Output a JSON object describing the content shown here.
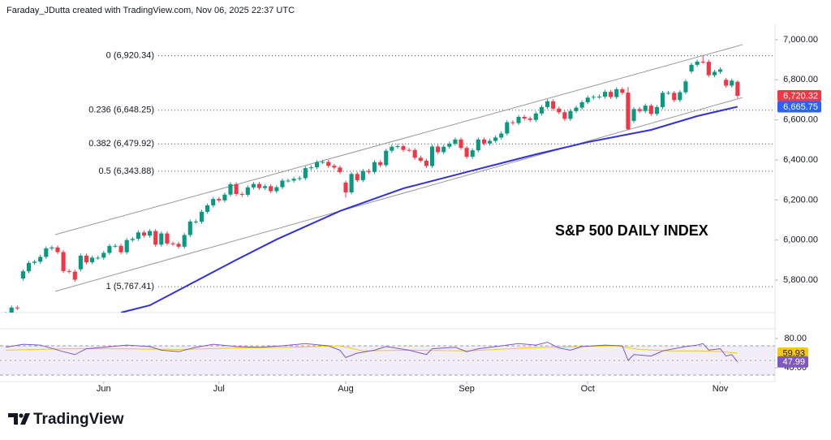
{
  "chart_data": {
    "type": "candlestick",
    "header": "Faraday_JDutta created with TradingView.com, Nov 06, 2025 22:37 UTC",
    "title": "S&P 500 DAILY INDEX",
    "brand": "TradingView",
    "xlim": [
      -1,
      133.5
    ],
    "xticks": [
      {
        "value": 17,
        "label": "Jun"
      },
      {
        "value": 37,
        "label": "Jul"
      },
      {
        "value": 59,
        "label": "Aug"
      },
      {
        "value": 80,
        "label": "Sep"
      },
      {
        "value": 101,
        "label": "Oct"
      },
      {
        "value": 124,
        "label": "Nov"
      }
    ],
    "ylim": [
      5638,
      7077
    ],
    "yticks": [
      {
        "value": 5800,
        "label": "5,800.00"
      },
      {
        "value": 6000,
        "label": "6,000.00"
      },
      {
        "value": 6200,
        "label": "6,200.00"
      },
      {
        "value": 6400,
        "label": "6,400.00"
      },
      {
        "value": 6600,
        "label": "6,600.00"
      },
      {
        "value": 6800,
        "label": "6,800.00"
      },
      {
        "value": 7000,
        "label": "7,000.00"
      }
    ],
    "grid": false,
    "candles": {
      "up_color": "#089981",
      "down_color": "#f23645",
      "open": [
        5605,
        5631,
        5663,
        5808,
        5844,
        5886,
        5892,
        5916,
        5958,
        5963,
        5940,
        5845,
        5842,
        5854,
        5922,
        5889,
        5912,
        5912,
        5936,
        5970,
        5971,
        5939,
        6000,
        6006,
        6038,
        6022,
        6045,
        5977,
        6033,
        5983,
        5981,
        5967,
        6025,
        6092,
        6092,
        6141,
        6173,
        6205,
        6198,
        6227,
        6279,
        6230,
        6226,
        6263,
        6280,
        6260,
        6269,
        6244,
        6264,
        6297,
        6297,
        6306,
        6309,
        6359,
        6363,
        6389,
        6390,
        6371,
        6362,
        6287,
        6238,
        6330,
        6299,
        6345,
        6340,
        6389,
        6374,
        6446,
        6466,
        6469,
        6450,
        6449,
        6411,
        6396,
        6370,
        6467,
        6439,
        6466,
        6481,
        6502,
        6460,
        6416,
        6448,
        6502,
        6482,
        6495,
        6512,
        6532,
        6588,
        6584,
        6615,
        6607,
        6600,
        6632,
        6664,
        6693,
        6656,
        6638,
        6605,
        6644,
        6661,
        6688,
        6711,
        6715,
        6716,
        6740,
        6714,
        6753,
        6736,
        6595,
        6654,
        6644,
        6671,
        6630,
        6664,
        6735,
        6735,
        6699,
        6738,
        6842,
        6875,
        6891,
        6890,
        6823,
        6840,
        6800,
        6771,
        6790
      ],
      "high": [
        5641,
        5673,
        5673,
        5854,
        5896,
        5902,
        5926,
        5968,
        5973,
        5973,
        5950,
        5855,
        5852,
        5932,
        5932,
        5922,
        5922,
        5946,
        5980,
        5981,
        5981,
        6010,
        6016,
        6048,
        6048,
        6055,
        6055,
        6043,
        6043,
        5993,
        5991,
        6035,
        6102,
        6102,
        6151,
        6183,
        6215,
        6215,
        6237,
        6289,
        6289,
        6240,
        6273,
        6290,
        6290,
        6279,
        6279,
        6274,
        6307,
        6307,
        6316,
        6319,
        6369,
        6373,
        6399,
        6400,
        6400,
        6381,
        6372,
        6297,
        6340,
        6340,
        6355,
        6355,
        6399,
        6399,
        6456,
        6476,
        6479,
        6479,
        6460,
        6459,
        6421,
        6406,
        6477,
        6477,
        6476,
        6491,
        6512,
        6512,
        6470,
        6458,
        6512,
        6512,
        6505,
        6522,
        6542,
        6598,
        6598,
        6625,
        6625,
        6617,
        6642,
        6674,
        6703,
        6703,
        6666,
        6648,
        6654,
        6671,
        6698,
        6721,
        6725,
        6726,
        6750,
        6750,
        6763,
        6763,
        6764,
        6664,
        6664,
        6681,
        6681,
        6674,
        6745,
        6745,
        6745,
        6748,
        6802,
        6885,
        6901,
        6920.34,
        6900,
        6850,
        6862,
        6810,
        6806,
        6798
      ],
      "low": [
        5595,
        5621,
        5650,
        5798,
        5834,
        5876,
        5882,
        5906,
        5948,
        5930,
        5835,
        5832,
        5792,
        5844,
        5879,
        5879,
        5902,
        5902,
        5926,
        5960,
        5929,
        5929,
        5990,
        5996,
        6012,
        6012,
        5967,
        5967,
        5973,
        5971,
        5957,
        5957,
        6015,
        6082,
        6082,
        6131,
        6163,
        6188,
        6188,
        6217,
        6220,
        6216,
        6216,
        6253,
        6250,
        6250,
        6234,
        6234,
        6254,
        6287,
        6287,
        6296,
        6299,
        6349,
        6353,
        6379,
        6361,
        6352,
        6329,
        6212,
        6228,
        6289,
        6289,
        6330,
        6330,
        6364,
        6364,
        6436,
        6456,
        6440,
        6439,
        6401,
        6386,
        6360,
        6360,
        6429,
        6429,
        6456,
        6471,
        6450,
        6406,
        6406,
        6438,
        6472,
        6472,
        6485,
        6502,
        6522,
        6574,
        6574,
        6597,
        6590,
        6590,
        6622,
        6654,
        6646,
        6628,
        6595,
        6595,
        6634,
        6651,
        6678,
        6701,
        6705,
        6706,
        6704,
        6704,
        6725,
        6550,
        6585,
        6634,
        6634,
        6620,
        6620,
        6654,
        6725,
        6689,
        6689,
        6728,
        6832,
        6865,
        6880,
        6813,
        6813,
        6830,
        6761,
        6761,
        6708
      ],
      "close": [
        5631,
        5663,
        5660,
        5844,
        5886,
        5892,
        5916,
        5958,
        5963,
        5940,
        5845,
        5842,
        5802,
        5922,
        5889,
        5912,
        5912,
        5936,
        5970,
        5971,
        5939,
        6000,
        6006,
        6038,
        6022,
        6045,
        5977,
        6033,
        5983,
        5981,
        5967,
        6025,
        6092,
        6092,
        6141,
        6173,
        6205,
        6198,
        6227,
        6279,
        6230,
        6226,
        6263,
        6280,
        6260,
        6269,
        6244,
        6264,
        6297,
        6297,
        6306,
        6309,
        6359,
        6363,
        6389,
        6390,
        6371,
        6362,
        6339,
        6238,
        6330,
        6299,
        6345,
        6340,
        6389,
        6374,
        6446,
        6466,
        6469,
        6450,
        6449,
        6411,
        6396,
        6370,
        6467,
        6439,
        6466,
        6481,
        6502,
        6460,
        6416,
        6448,
        6502,
        6482,
        6495,
        6512,
        6532,
        6588,
        6584,
        6615,
        6607,
        6600,
        6632,
        6664,
        6693,
        6656,
        6638,
        6605,
        6644,
        6661,
        6688,
        6711,
        6715,
        6716,
        6740,
        6714,
        6753,
        6735,
        6553,
        6654,
        6644,
        6671,
        6630,
        6664,
        6735,
        6735,
        6699,
        6738,
        6792,
        6875,
        6891,
        6890,
        6823,
        6840,
        6852,
        6771,
        6796,
        6720.32
      ]
    },
    "ma": {
      "color": "#3030d8",
      "x": [
        20,
        25,
        32,
        40,
        47,
        58,
        69,
        81,
        92,
        101,
        112,
        120,
        127
      ],
      "values": [
        5638,
        5674,
        5780,
        5901,
        6003,
        6145,
        6258,
        6347,
        6428,
        6489,
        6550,
        6619,
        6665.75
      ]
    },
    "trendlines": [
      {
        "color": "#9598a1",
        "x": [
          8.6,
          127.9
        ],
        "values": [
          6027,
          6976
        ]
      },
      {
        "color": "#9598a1",
        "x": [
          8.6,
          127.9
        ],
        "values": [
          5744,
          6712
        ]
      }
    ],
    "fib": {
      "color": "#555555",
      "levels": [
        {
          "value": 6920.34,
          "label": "0 (6,920.34)"
        },
        {
          "value": 6648.25,
          "label": "0.236 (6,648.25)"
        },
        {
          "value": 6479.92,
          "label": "0.382 (6,479.92)"
        },
        {
          "value": 6343.88,
          "label": "0.5 (6,343.88)"
        },
        {
          "value": 5767.41,
          "label": "1 (5,767.41)"
        }
      ]
    },
    "price_tags": [
      {
        "value": 6720.32,
        "label": "6,720.32",
        "color": "#f23645"
      },
      {
        "value": 6665.75,
        "label": "6,665.75",
        "color": "#2962ff"
      }
    ],
    "rsi": {
      "ylim": [
        21.1,
        93.3
      ],
      "yticks": [
        {
          "value": 80,
          "label": "80.00"
        },
        {
          "value": 40,
          "label": "40.00"
        }
      ],
      "levels": [
        70,
        50,
        30
      ],
      "band_color": "#7e57c2",
      "line": {
        "color": "#7e57c2",
        "x": [
          0,
          3,
          6,
          10,
          12,
          14,
          17,
          21,
          25,
          27,
          30,
          33,
          36,
          40,
          44,
          48,
          52,
          56,
          58,
          59,
          61,
          64,
          66,
          70,
          73,
          74,
          78,
          80,
          82,
          86,
          89,
          92,
          94,
          96,
          98,
          100,
          104,
          107,
          108,
          109,
          112,
          114,
          118,
          120,
          121,
          122,
          124,
          125,
          126,
          127
        ],
        "values": [
          68,
          72,
          71,
          62,
          58,
          66,
          68,
          71,
          69,
          64,
          62,
          68,
          72,
          69,
          68,
          70,
          73,
          70,
          64,
          54,
          60,
          64,
          69,
          64,
          58,
          66,
          68,
          62,
          66,
          70,
          73,
          71,
          75,
          67,
          64,
          69,
          71,
          70,
          50,
          58,
          56,
          63,
          69,
          71,
          73,
          64,
          66,
          56,
          58,
          47.99
        ]
      },
      "ma": {
        "color": "#f5c71a",
        "x": [
          0,
          10,
          20,
          30,
          40,
          50,
          58,
          62,
          70,
          80,
          90,
          100,
          106,
          110,
          115,
          120,
          124,
          127
        ],
        "values": [
          64,
          66,
          66,
          65,
          67,
          68,
          70,
          63,
          64,
          63,
          67,
          69,
          70,
          65,
          63,
          63,
          62,
          59.93
        ]
      },
      "tags": [
        {
          "value": 59.93,
          "label": "59.93",
          "color": "#f5c71a",
          "text_color": "#131722"
        },
        {
          "value": 47.99,
          "label": "47.99",
          "color": "#7e57c2",
          "text_color": "#ffffff"
        }
      ]
    }
  }
}
